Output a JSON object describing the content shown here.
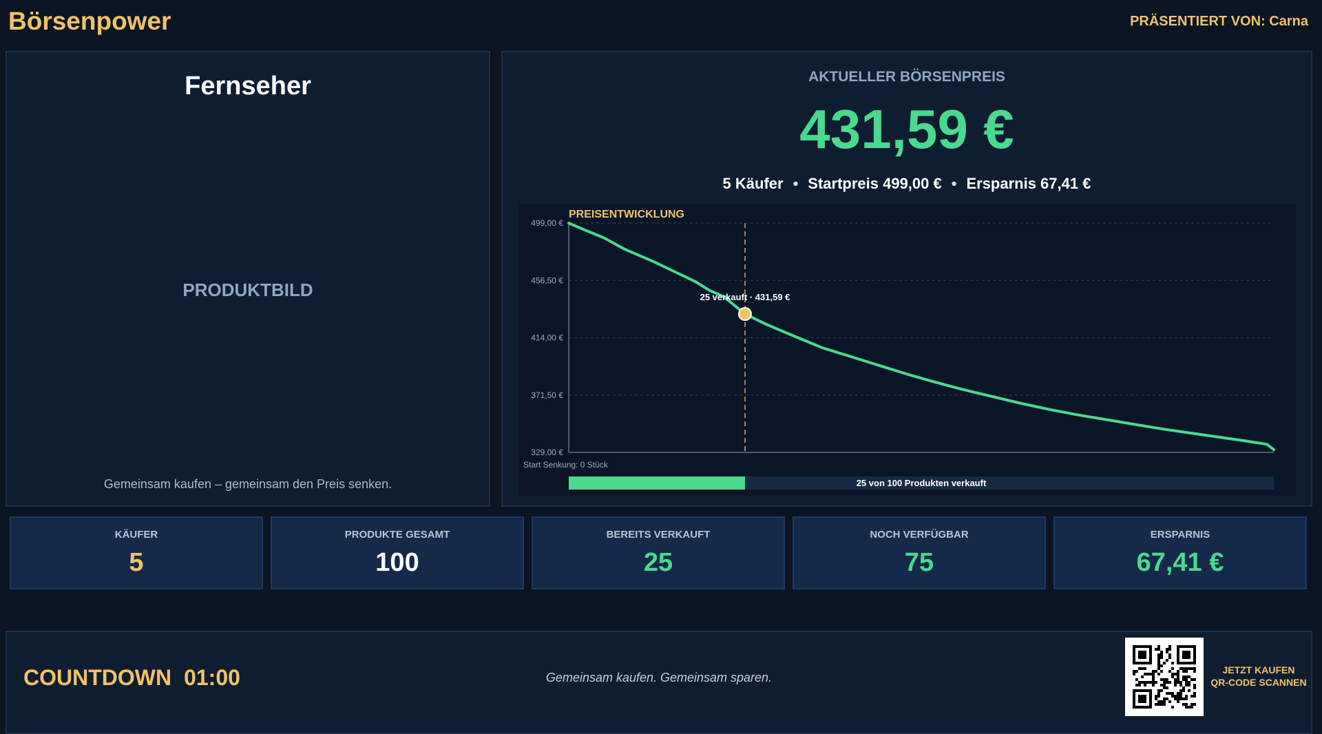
{
  "header": {
    "brand": "Börsenpower",
    "presented_by": "PRÄSENTIERT VON: Carna"
  },
  "product": {
    "name": "Fernseher",
    "image_placeholder": "PRODUKTBILD",
    "tagline": "Gemeinsam kaufen – gemeinsam den Preis senken."
  },
  "price": {
    "heading": "AKTUELLER BÖRSENPREIS",
    "current": "431,59 €",
    "buyers": "5 Käufer",
    "start_price": "Startpreis 499,00 €",
    "savings": "Ersparnis 67,41 €",
    "separator": "•"
  },
  "progress": {
    "sold": 25,
    "total": 100,
    "label": "25 von 100 Produkten verkauft"
  },
  "stats": [
    {
      "label": "KÄUFER",
      "value": "5",
      "color": "#f2c265"
    },
    {
      "label": "PRODUKTE GESAMT",
      "value": "100",
      "color": "#ffffff"
    },
    {
      "label": "BEREITS VERKAUFT",
      "value": "25",
      "color": "#4ad98f"
    },
    {
      "label": "NOCH VERFÜGBAR",
      "value": "75",
      "color": "#4ad98f"
    },
    {
      "label": "ERSPARNIS",
      "value": "67,41 €",
      "color": "#4ad98f"
    }
  ],
  "footer": {
    "countdown_label": "COUNTDOWN",
    "countdown_time": "01:00",
    "slogan": "Gemeinsam kaufen. Gemeinsam sparen.",
    "cta_line1": "JETZT KAUFEN",
    "cta_line2": "QR-CODE SCANNEN"
  },
  "colors": {
    "accent": "#f2c265",
    "positive": "#4ad98f",
    "background": "#0a1423",
    "panel": "#0f1d31"
  },
  "chart_data": {
    "type": "line",
    "title": "PREISENTWICKLUNG",
    "xlabel": "",
    "ylabel": "",
    "x_start_label": "Start Senkung: 0 Stück",
    "xlim": [
      0,
      100
    ],
    "ylim": [
      329,
      499
    ],
    "y_ticks": [
      "499,00 €",
      "456,50 €",
      "414,00 €",
      "371,50 €",
      "329,00 €"
    ],
    "y_tick_values": [
      499,
      456.5,
      414,
      371.5,
      329
    ],
    "x": [
      0,
      2,
      5,
      8,
      10,
      12,
      15,
      18,
      20,
      22,
      25,
      28,
      30,
      33,
      36,
      40,
      44,
      48,
      52,
      56,
      60,
      64,
      68,
      72,
      76,
      80,
      84,
      88,
      92,
      96,
      99,
      100
    ],
    "y": [
      499,
      494.5,
      488,
      479.5,
      475,
      470.5,
      463,
      455.5,
      449,
      444.5,
      431.59,
      424,
      419.5,
      413,
      406.5,
      400,
      393.5,
      387,
      381,
      375.5,
      370.5,
      365.5,
      361,
      357,
      353.5,
      350,
      346.5,
      343.5,
      340.5,
      337.5,
      335,
      331
    ],
    "marker": {
      "x": 25,
      "y": 431.59,
      "label": "25 verkauft · 431,59 €"
    }
  }
}
